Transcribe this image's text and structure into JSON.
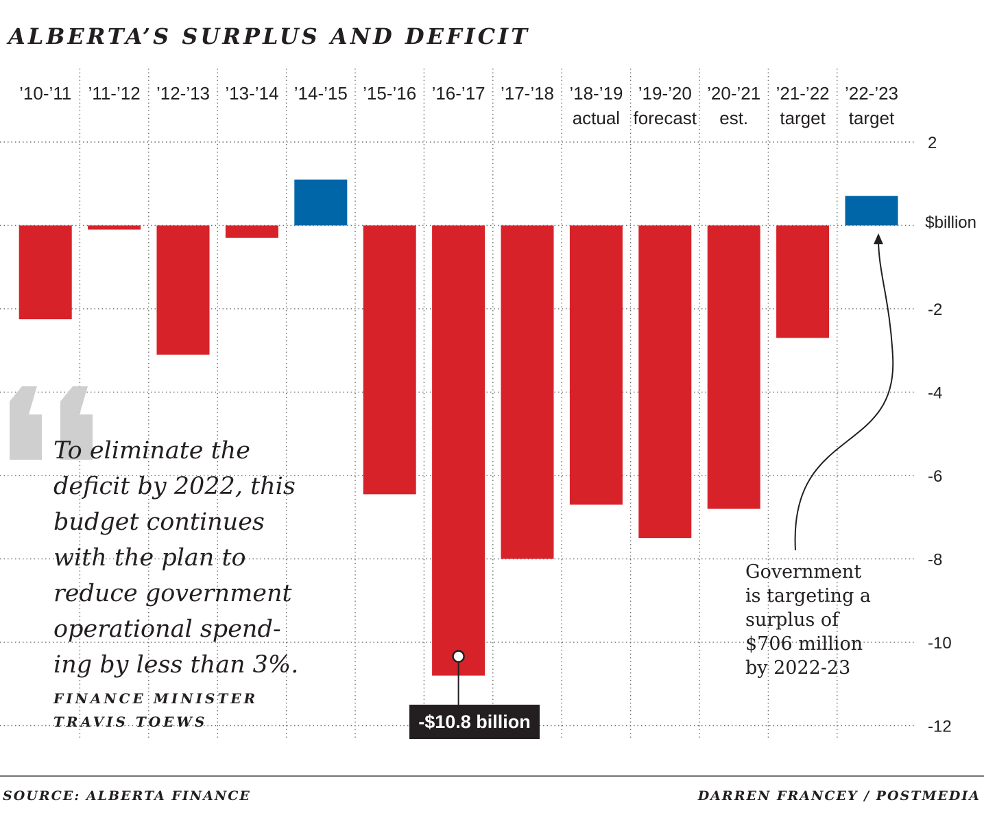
{
  "title": "ALBERTA’S SURPLUS AND DEFICIT",
  "colors": {
    "deficit": "#d7222a",
    "surplus": "#0066a8",
    "text": "#231f20",
    "quote_mark": "#cfcfcf"
  },
  "chart_data": {
    "type": "bar",
    "categories": [
      [
        "’10-’11"
      ],
      [
        "’11-’12"
      ],
      [
        "’12-’13"
      ],
      [
        "’13-’14"
      ],
      [
        "’14-’15"
      ],
      [
        "’15-’16"
      ],
      [
        "’16-’17"
      ],
      [
        "’17-’18"
      ],
      [
        "’18-’19",
        "actual"
      ],
      [
        "’19-’20",
        "forecast"
      ],
      [
        "’20-’21",
        "est."
      ],
      [
        "’21-’22",
        "target"
      ],
      [
        "’22-’23",
        "target"
      ]
    ],
    "values": [
      -2.25,
      -0.1,
      -3.1,
      -0.3,
      1.1,
      -6.45,
      -10.8,
      -8.0,
      -6.7,
      -7.5,
      -6.8,
      -2.7,
      0.706
    ],
    "ylabel": "$billion",
    "ylim": [
      -12,
      2
    ],
    "yticks": [
      2,
      -2,
      -4,
      -6,
      -8,
      -10,
      -12
    ],
    "grid": true
  },
  "callout": {
    "label": "-$10.8 billion",
    "category_index": 6,
    "value": -10.8
  },
  "annotation": {
    "lines": [
      "Government",
      "is targeting a",
      "surplus of",
      "$706 million",
      "by 2022-23"
    ],
    "category_index": 12
  },
  "quote": {
    "lines": [
      "To eliminate the",
      "deficit by 2022, this",
      "budget continues",
      "with the plan to",
      "reduce government",
      "operational spend-",
      "ing by less than 3%."
    ],
    "attribution": [
      "FINANCE MINISTER",
      "TRAVIS TOEWS"
    ]
  },
  "footer": {
    "source": "SOURCE: ALBERTA FINANCE",
    "credit": "DARREN FRANCEY / POSTMEDIA"
  }
}
